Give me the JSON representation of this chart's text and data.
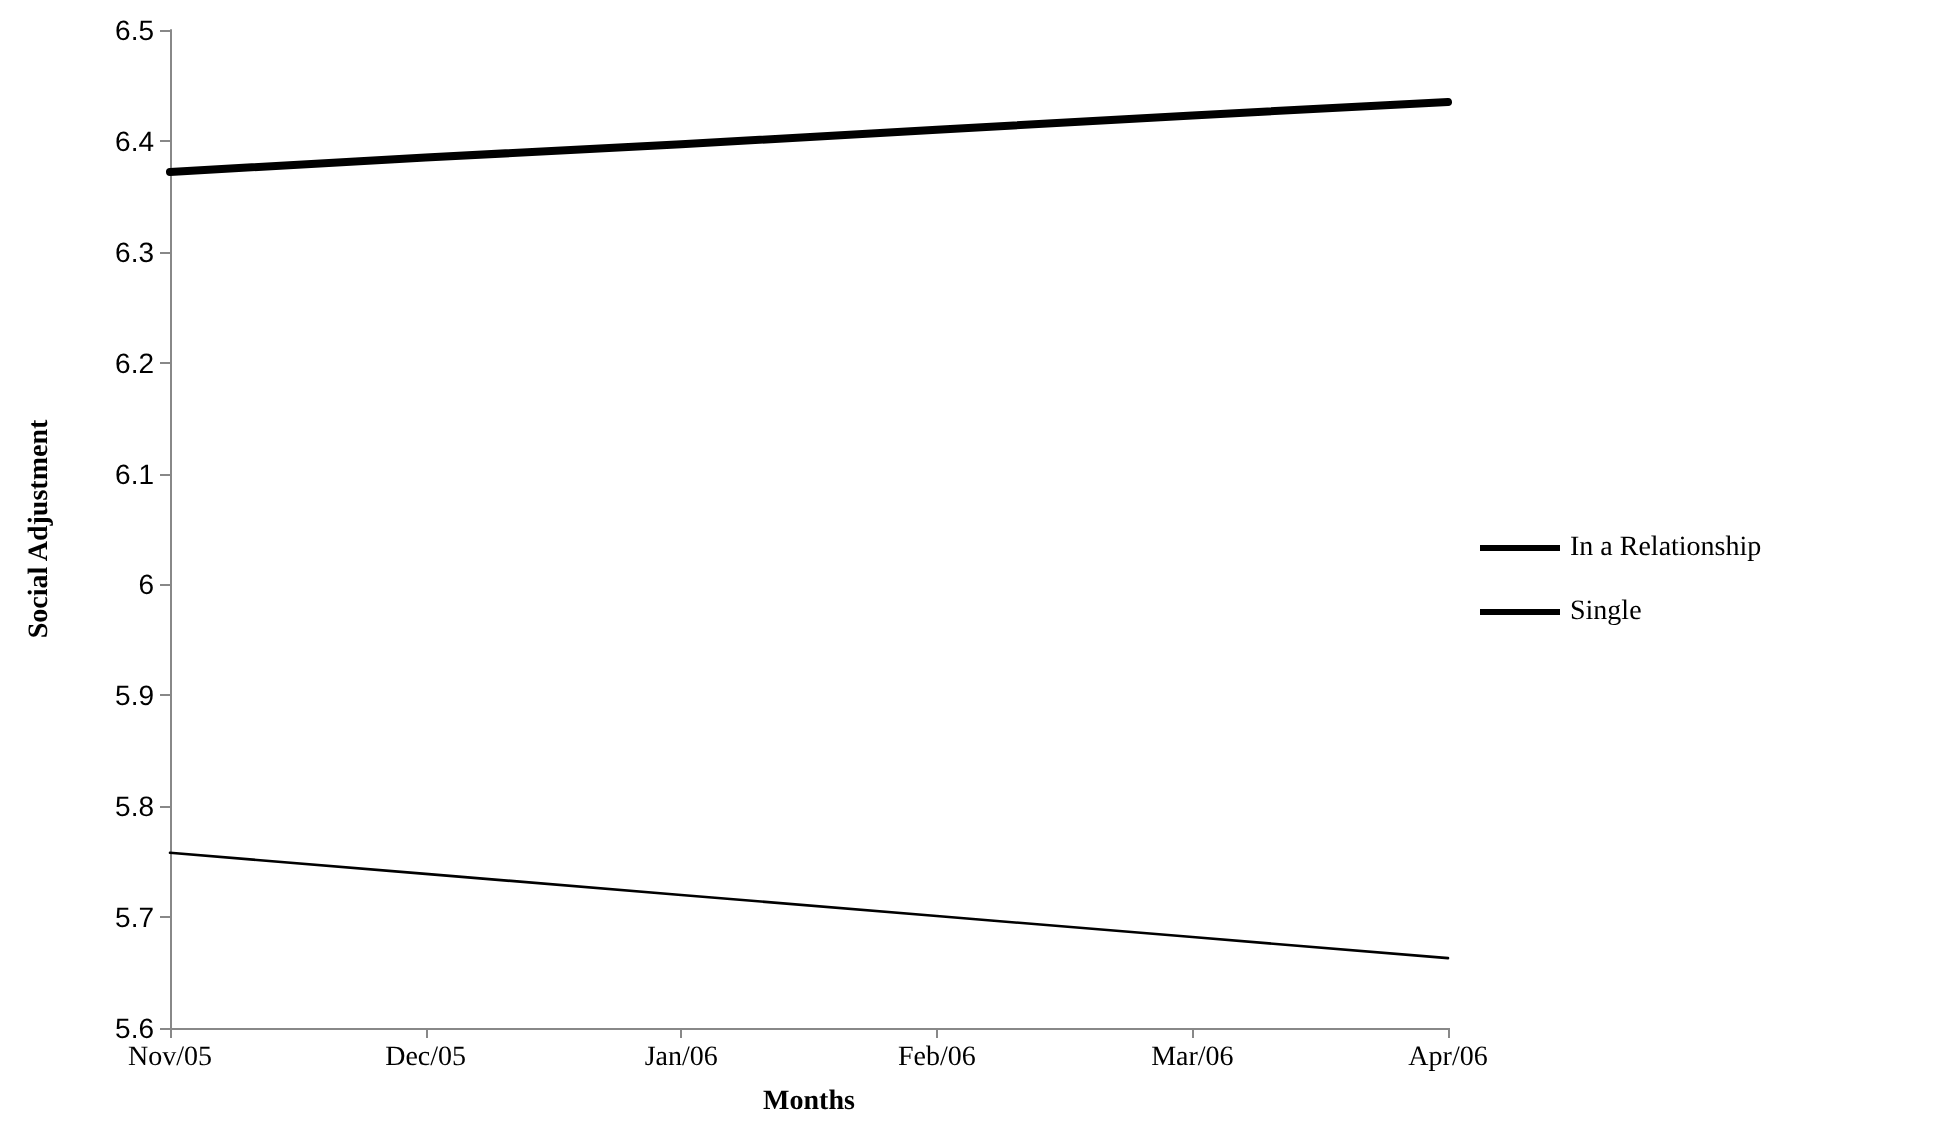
{
  "chart_data": {
    "type": "line",
    "xlabel": "Months",
    "ylabel": "Social Adjustment",
    "categories": [
      "Nov/05",
      "Dec/05",
      "Jan/06",
      "Feb/06",
      "Mar/06",
      "Apr/06"
    ],
    "series": [
      {
        "name": "In a Relationship",
        "color": "#000000",
        "values": [
          6.372,
          6.385,
          6.397,
          6.41,
          6.423,
          6.435
        ]
      },
      {
        "name": "Single",
        "color": "#000000",
        "values": [
          5.758,
          5.739,
          5.72,
          5.701,
          5.682,
          5.663
        ]
      }
    ],
    "ylim": [
      5.6,
      6.5
    ],
    "yticks": [
      5.6,
      5.7,
      5.8,
      5.9,
      6,
      6.1,
      6.2,
      6.3,
      6.4,
      6.5
    ],
    "grid": false,
    "legend": "right",
    "marker": "none",
    "line_style": "solid"
  }
}
